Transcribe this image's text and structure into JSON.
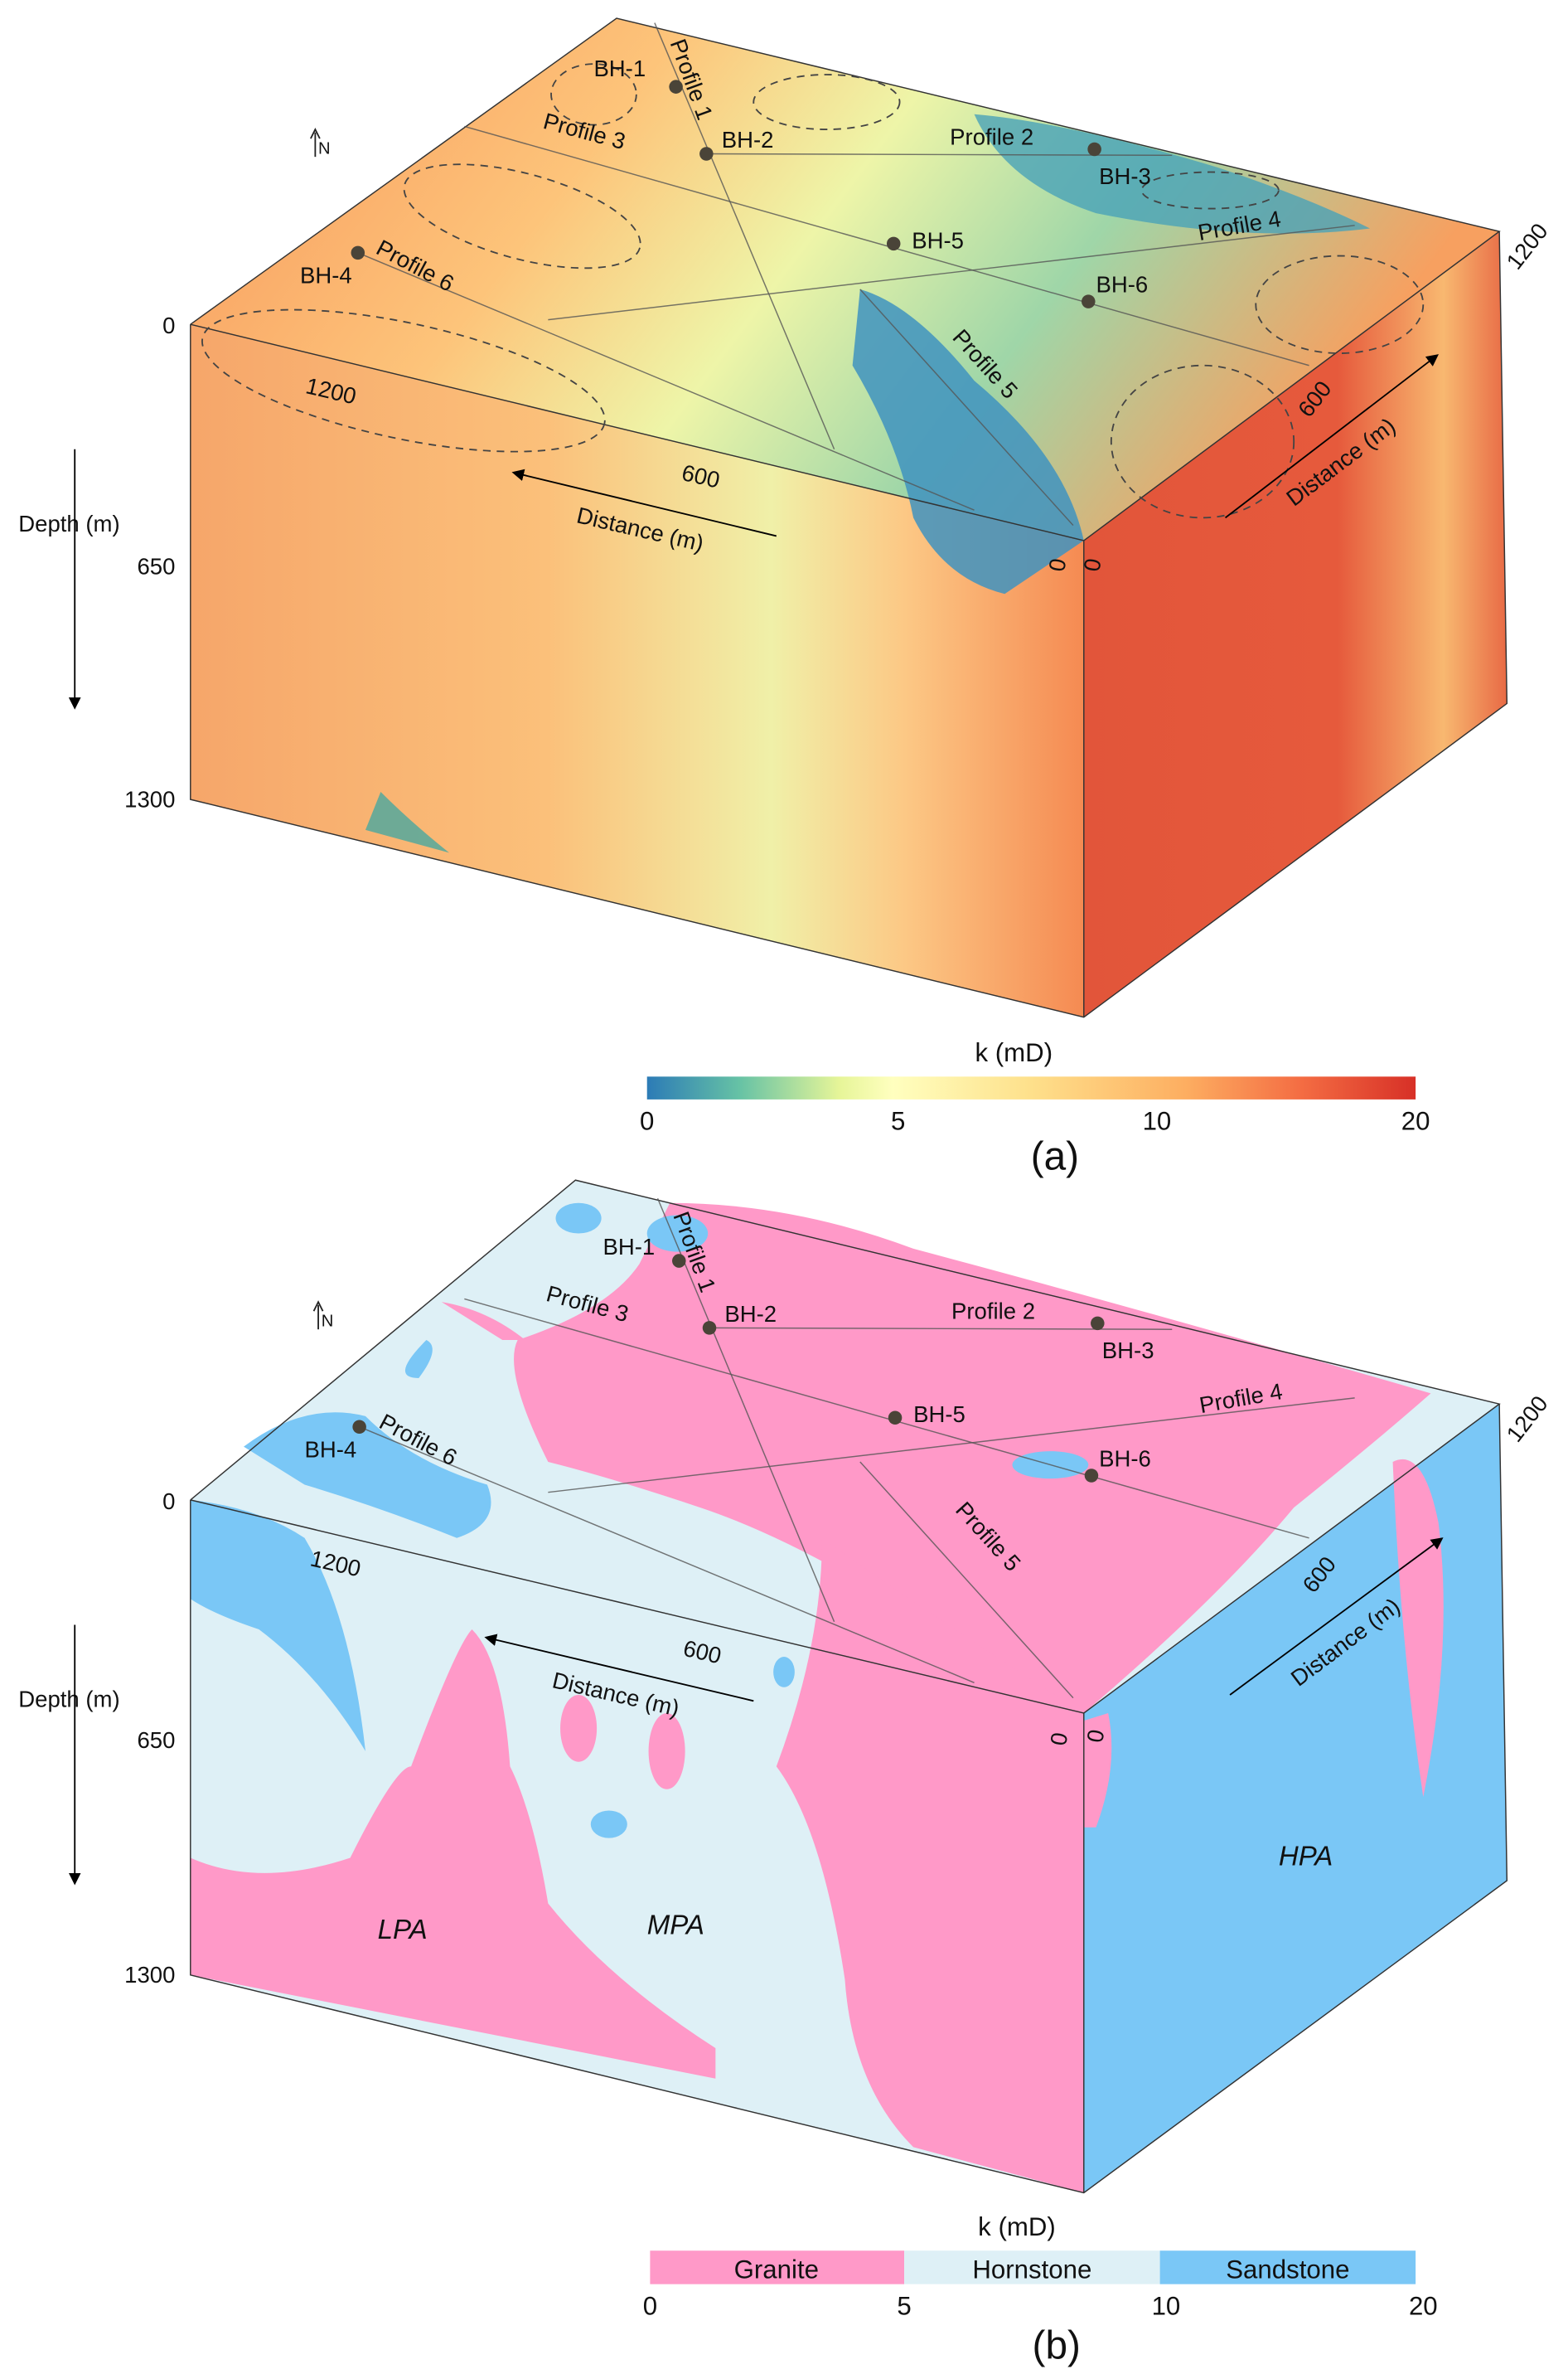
{
  "panels": [
    {
      "label": "(a)",
      "north": "N",
      "depth_axis": {
        "title": "Depth (m)",
        "ticks": [
          "0",
          "650",
          "1300"
        ]
      },
      "distance_axes": [
        {
          "title": "Distance (m)",
          "ticks": [
            "1200",
            "600",
            "0"
          ]
        },
        {
          "title": "Distance (m)",
          "ticks": [
            "0",
            "600",
            "1200"
          ]
        }
      ],
      "boreholes": [
        "BH-1",
        "BH-2",
        "BH-3",
        "BH-4",
        "BH-5",
        "BH-6"
      ],
      "profiles": [
        "Profile 1",
        "Profile 2",
        "Profile 3",
        "Profile 4",
        "Profile 5",
        "Profile 6"
      ],
      "colorbar": {
        "title": "k (mD)",
        "type": "continuous",
        "ticks": [
          "0",
          "5",
          "10",
          "20"
        ],
        "colors": [
          "#2c7bb6",
          "#66c2a5",
          "#e6f598",
          "#ffffbf",
          "#fee08b",
          "#fdae61",
          "#f46d43",
          "#d73027"
        ]
      }
    },
    {
      "label": "(b)",
      "north": "N",
      "depth_axis": {
        "title": "Depth (m)",
        "ticks": [
          "0",
          "650",
          "1300"
        ]
      },
      "distance_axes": [
        {
          "title": "Distance (m)",
          "ticks": [
            "1200",
            "600",
            "0"
          ]
        },
        {
          "title": "Distance (m)",
          "ticks": [
            "0",
            "600",
            "1200"
          ]
        }
      ],
      "boreholes": [
        "BH-1",
        "BH-2",
        "BH-3",
        "BH-4",
        "BH-5",
        "BH-6"
      ],
      "profiles": [
        "Profile 1",
        "Profile 2",
        "Profile 3",
        "Profile 4",
        "Profile 5",
        "Profile 6"
      ],
      "zones": [
        "LPA",
        "MPA",
        "HPA"
      ],
      "colorbar": {
        "title": "k (mD)",
        "type": "categorical",
        "classes": [
          {
            "name": "Granite",
            "color": "#ff99c8"
          },
          {
            "name": "Hornstone",
            "color": "#def0f6"
          },
          {
            "name": "Sandstone",
            "color": "#7ac7f6"
          }
        ],
        "ticks": [
          "0",
          "5",
          "10",
          "20"
        ]
      }
    }
  ]
}
